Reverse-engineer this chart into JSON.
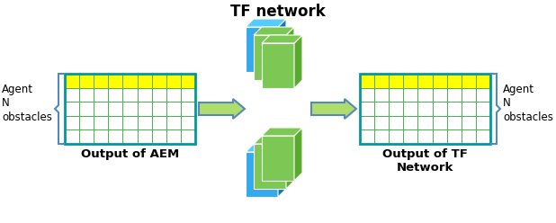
{
  "title_tf": "TF network",
  "label_aem": "Output of AEM",
  "label_tf": "Output of TF\nNetwork",
  "label_left_agent": "Agent\nN\nobstacles",
  "label_right_agent": "Agent\nN\nobstacles",
  "grid_rows": 5,
  "grid_cols": 9,
  "yellow_row_color": "#FFFF00",
  "grid_fill_color": "#FFFFFF",
  "grid_border_color": "#4CAF50",
  "grid_outline_color": "#009999",
  "arrow_color": "#AEDD6E",
  "arrow_edge_color": "#5588BB",
  "nn_green_light": "#7DC855",
  "nn_green_mid": "#5aaa30",
  "nn_green_dark": "#3d7a20",
  "nn_blue_light": "#55CCFF",
  "nn_blue_mid": "#33AAEE",
  "nn_blue_dark": "#1177BB",
  "brace_color": "#5588BB",
  "text_color": "#000000",
  "bg_color": "#FFFFFF"
}
